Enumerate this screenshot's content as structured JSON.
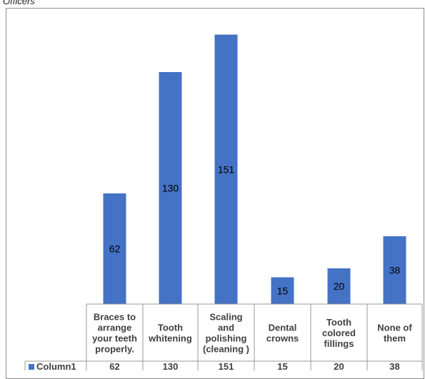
{
  "caption": "Officers",
  "colors": {
    "bar": "#4472c4",
    "grid": "#9a9a9a",
    "frame": "#8c8c8c"
  },
  "chart_data": {
    "type": "bar",
    "categories": [
      [
        "Braces to",
        "arrange",
        "your teeth",
        "properly."
      ],
      [
        "Tooth",
        "whitening"
      ],
      [
        "Scaling",
        "and",
        "polishing",
        "(cleaning )"
      ],
      [
        "Dental",
        "crowns"
      ],
      [
        "Tooth",
        "colored",
        "fillings"
      ],
      [
        "None of",
        "them"
      ]
    ],
    "series": [
      {
        "name": "Column1",
        "values": [
          62,
          130,
          151,
          15,
          20,
          38
        ]
      }
    ],
    "ylim": [
      0,
      160
    ],
    "data_labels": true,
    "legend": "data-table",
    "grid": false
  }
}
